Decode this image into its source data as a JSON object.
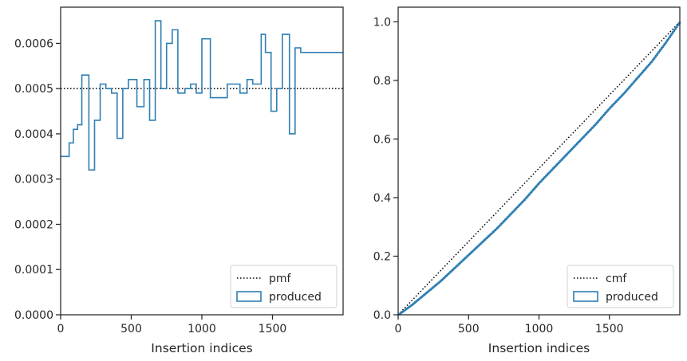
{
  "chart_data": [
    {
      "type": "histogram",
      "xlabel": "Insertion indices",
      "ylabel": "",
      "xlim": [
        0,
        2000
      ],
      "ylim": [
        0,
        0.00068
      ],
      "x_ticks": [
        0,
        500,
        1000,
        1500
      ],
      "x_tick_labels": [
        "0",
        "500",
        "1000",
        "1500"
      ],
      "y_ticks": [
        0,
        0.0001,
        0.0002,
        0.0003,
        0.0004,
        0.0005,
        0.0006
      ],
      "y_tick_labels": [
        "0.0000",
        "0.0001",
        "0.0002",
        "0.0003",
        "0.0004",
        "0.0005",
        "0.0006"
      ],
      "legend_position": "bottom-right",
      "series": [
        {
          "name": "pmf",
          "kind": "hline",
          "y": 0.0005,
          "style": "dotted",
          "color": "#000000"
        },
        {
          "name": "produced",
          "kind": "step-hist",
          "color": "#2f7fb3",
          "bin_edges": [
            0,
            60,
            90,
            120,
            150,
            200,
            240,
            280,
            320,
            360,
            400,
            440,
            480,
            540,
            590,
            630,
            670,
            710,
            750,
            790,
            830,
            880,
            920,
            960,
            1000,
            1060,
            1180,
            1220,
            1270,
            1320,
            1360,
            1420,
            1450,
            1490,
            1530,
            1570,
            1620,
            1660,
            1700,
            1740,
            1790,
            1850,
            1890,
            1940,
            2000
          ],
          "values": [
            0.00035,
            0.00038,
            0.00041,
            0.00042,
            0.00053,
            0.00032,
            0.00043,
            0.00051,
            0.0005,
            0.00049,
            0.00039,
            0.0005,
            0.00052,
            0.00046,
            0.00052,
            0.00043,
            0.00065,
            0.0005,
            0.0006,
            0.00063,
            0.00049,
            0.0005,
            0.00051,
            0.00049,
            0.00061,
            0.00048,
            0.00051,
            0.00051,
            0.00049,
            0.00052,
            0.00051,
            0.00062,
            0.00058,
            0.00045,
            0.0005,
            0.00062,
            0.0004,
            0.00059,
            0.00058,
            0.00058,
            0.00058,
            0.00058,
            0.00058,
            0.00058
          ]
        }
      ]
    },
    {
      "type": "line",
      "xlabel": "Insertion indices",
      "ylabel": "",
      "xlim": [
        0,
        2000
      ],
      "ylim": [
        0,
        1.05
      ],
      "x_ticks": [
        0,
        500,
        1000,
        1500
      ],
      "x_tick_labels": [
        "0",
        "500",
        "1000",
        "1500"
      ],
      "y_ticks": [
        0,
        0.2,
        0.4,
        0.6,
        0.8,
        1.0
      ],
      "y_tick_labels": [
        "0.0",
        "0.2",
        "0.4",
        "0.6",
        "0.8",
        "1.0"
      ],
      "legend_position": "bottom-right",
      "series": [
        {
          "name": "cmf",
          "kind": "line",
          "style": "dotted",
          "color": "#000000",
          "x": [
            0,
            2000
          ],
          "y": [
            0,
            1.0
          ]
        },
        {
          "name": "produced",
          "kind": "step-line",
          "color": "#2f7fb3",
          "x": [
            0,
            100,
            200,
            300,
            400,
            500,
            600,
            700,
            800,
            900,
            1000,
            1100,
            1200,
            1300,
            1400,
            1500,
            1600,
            1700,
            1800,
            1900,
            2000
          ],
          "y": [
            0,
            0.035,
            0.075,
            0.115,
            0.16,
            0.205,
            0.25,
            0.295,
            0.345,
            0.395,
            0.45,
            0.5,
            0.55,
            0.6,
            0.65,
            0.705,
            0.755,
            0.81,
            0.865,
            0.93,
            1.0
          ]
        }
      ]
    }
  ]
}
